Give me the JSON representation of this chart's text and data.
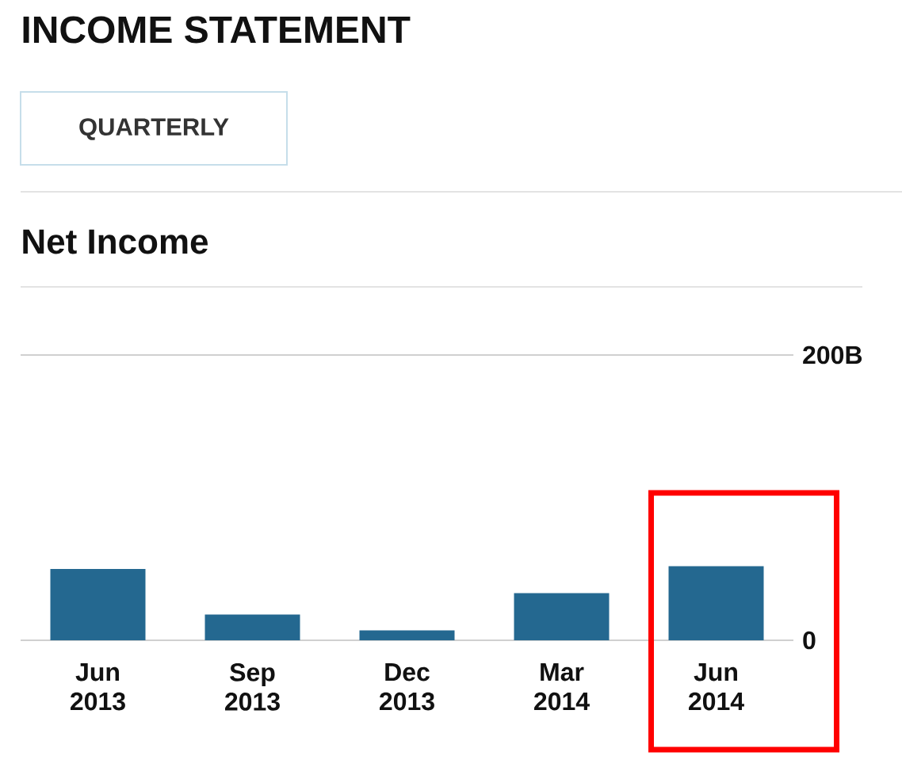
{
  "chart_data": {
    "type": "bar",
    "title": "INCOME STATEMENT",
    "subtitle": "Net Income",
    "annotations": [
      "QUARTERLY"
    ],
    "categories": [
      "Jun 2013",
      "Sep 2013",
      "Dec 2013",
      "Mar 2014",
      "Jun 2014"
    ],
    "values": [
      50,
      18,
      7,
      33,
      52
    ],
    "color": "#246890",
    "ylim": [
      0,
      200
    ],
    "yticks": [
      0,
      {
        "value": 200,
        "label": "200B"
      }
    ]
  }
}
